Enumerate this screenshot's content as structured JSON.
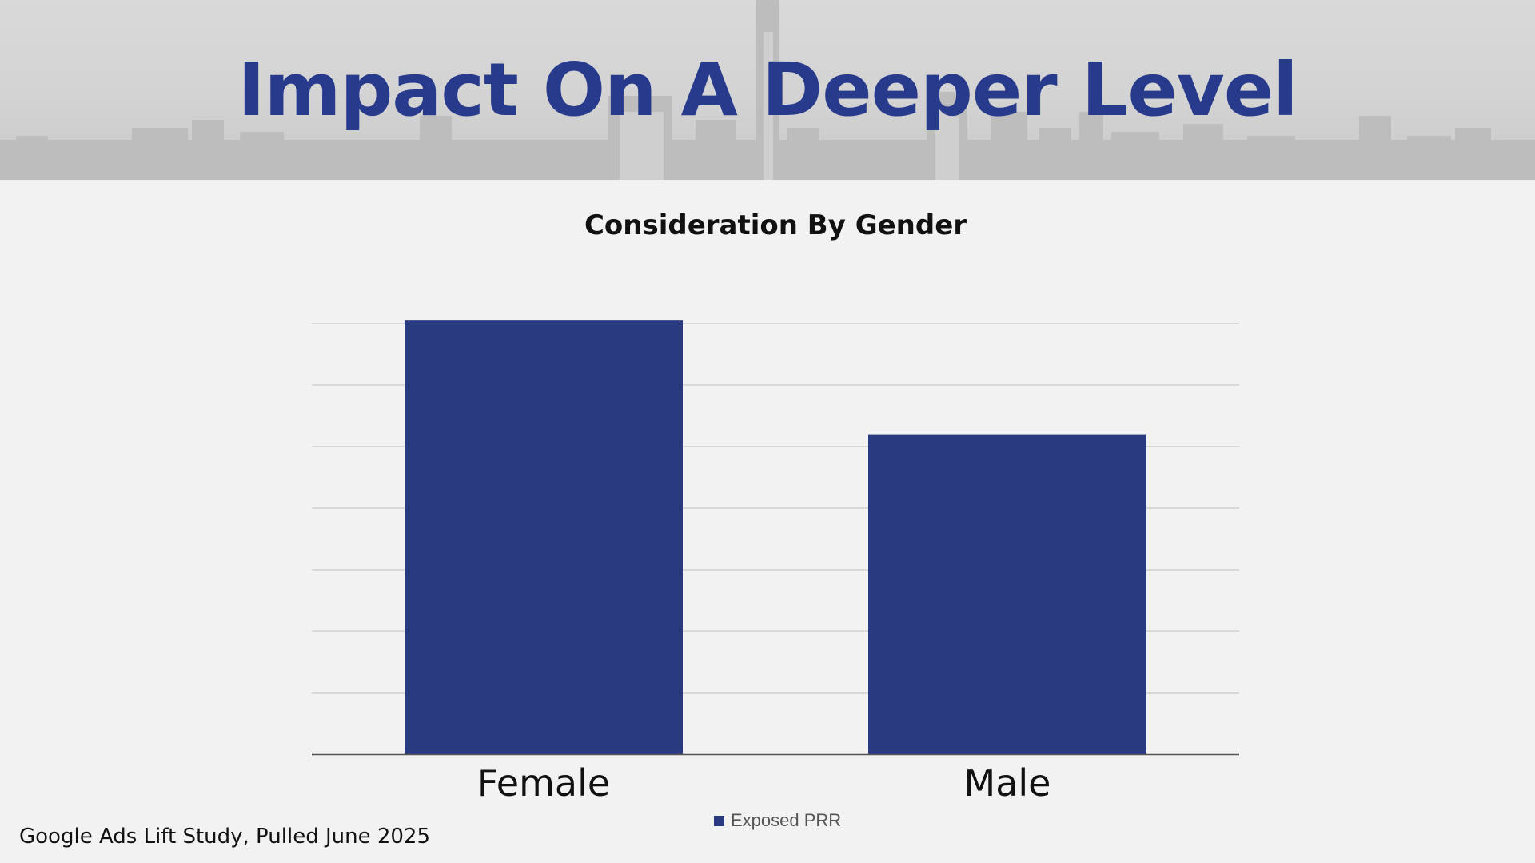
{
  "slide": {
    "title": "Impact On A Deeper Level",
    "source_note": "Google Ads Lift Study, Pulled June 2025"
  },
  "colors": {
    "brand": "#283a8c",
    "bar": "#2a3a80"
  },
  "chart_data": {
    "type": "bar",
    "title": "Consideration By Gender",
    "categories": [
      "Female",
      "Male"
    ],
    "series": [
      {
        "name": "Exposed PRR",
        "values": [
          70.5,
          52
        ]
      }
    ],
    "xlabel": "",
    "ylabel": "",
    "ylim": [
      0,
      70
    ],
    "gridlines": 7,
    "legend_position": "bottom"
  }
}
